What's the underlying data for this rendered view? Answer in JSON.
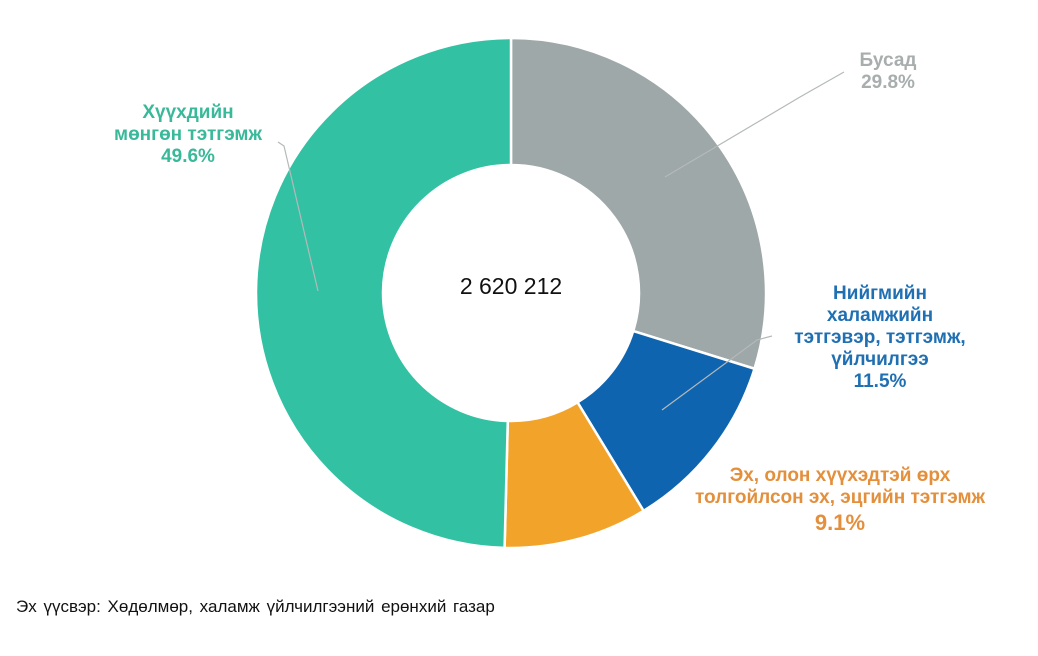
{
  "chart_data": {
    "type": "pie",
    "variant": "donut",
    "center_label": "2 620 212",
    "start_angle": "12 o'clock, clockwise",
    "slices": [
      {
        "label": "Бусад",
        "value": 29.8,
        "value_label": "29.8%",
        "color": "#9ea8a8"
      },
      {
        "label": "Нийгмийн халамжийн тэтгэвэр, тэтгэмж, үйлчилгээ",
        "value": 11.5,
        "value_label": "11.5%",
        "color": "#0f64b0"
      },
      {
        "label": "Эх, олон хүүхэдтэй өрх толгойлсон эх, эцгийн тэтгэмж",
        "value": 9.1,
        "value_label": "9.1%",
        "color": "#f2a42a"
      },
      {
        "label": "Хүүхдийн мөнгөн тэтгэмж",
        "value": 49.6,
        "value_label": "49.6%",
        "color": "#33c1a3"
      }
    ],
    "legend": "none (data labels with leader lines)",
    "source": "Эх үүсвэр:  Хөдөлмөр, халамж үйлчилгээний ерөнхий газар"
  },
  "labels": {
    "child": {
      "lines": [
        "Хүүхдийн",
        "мөнгөн тэтгэмж"
      ],
      "pct": "49.6%"
    },
    "other": {
      "lines": [
        "Бусад"
      ],
      "pct": "29.8%"
    },
    "social": {
      "lines": [
        "Нийгмийн",
        "халамжийн",
        "тэтгэвэр, тэтгэмж,",
        "үйлчилгээ"
      ],
      "pct": "11.5%"
    },
    "mother": {
      "lines": [
        "Эх, олон хүүхэдтэй өрх",
        "толгойлсон эх, эцгийн тэтгэмж"
      ],
      "pct": "9.1%"
    }
  },
  "center_total": "2 620 212",
  "source_note": "Эх үүсвэр:  Хөдөлмөр, халамж үйлчилгээний ерөнхий газар"
}
